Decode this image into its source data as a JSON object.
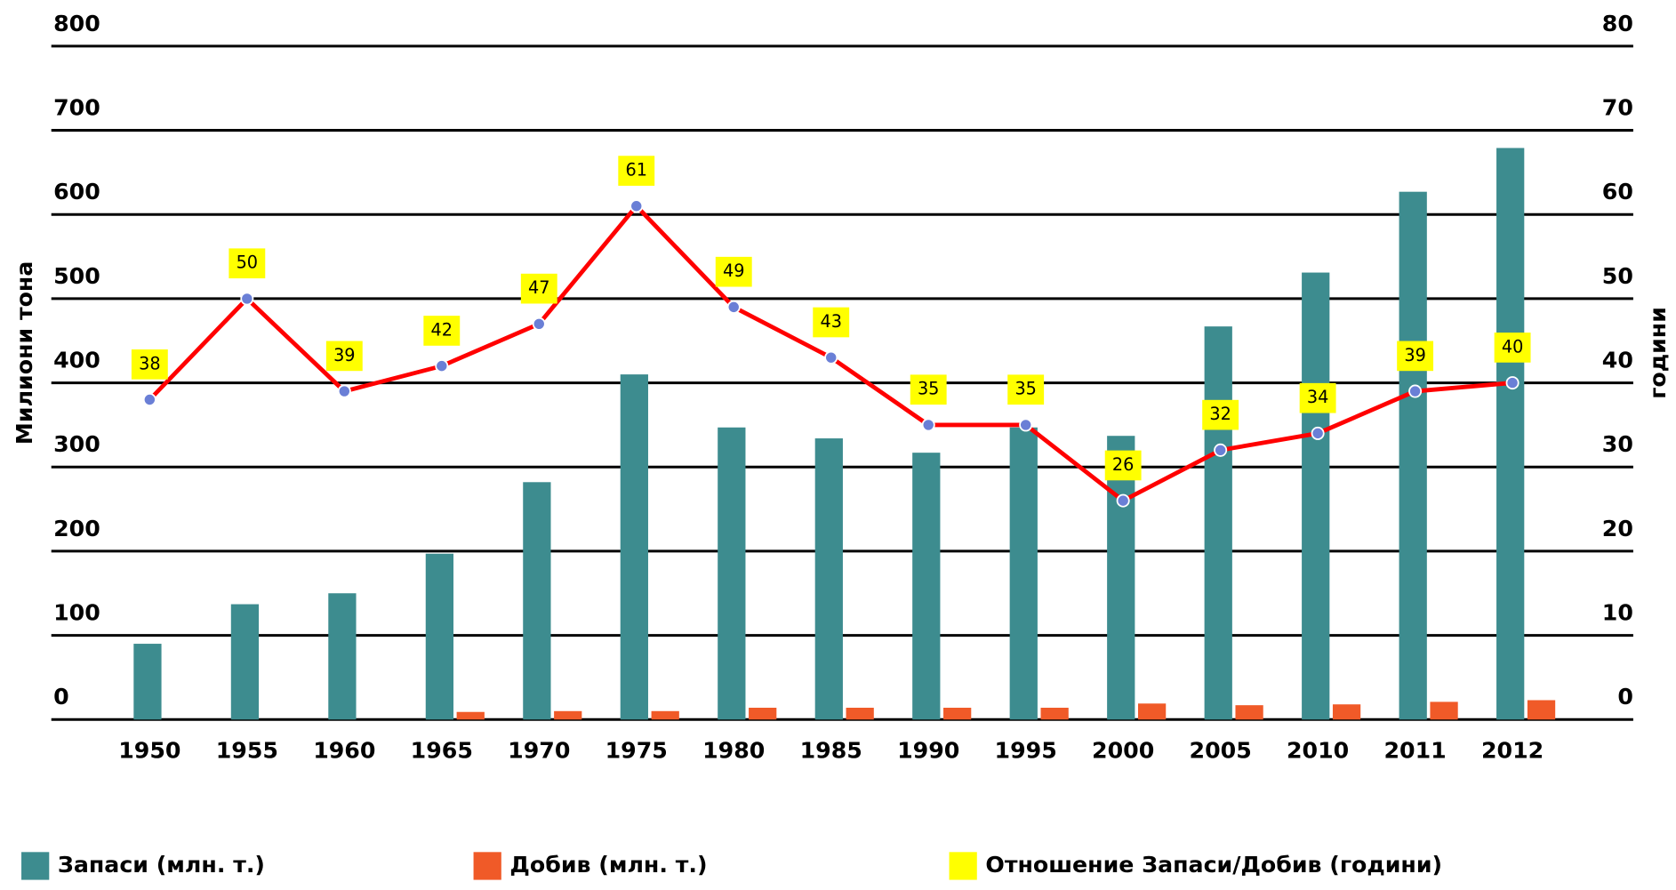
{
  "chart_data": {
    "type": "bar_line",
    "categories": [
      "1950",
      "1955",
      "1960",
      "1965",
      "1970",
      "1975",
      "1980",
      "1985",
      "1990",
      "1995",
      "2000",
      "2005",
      "2010",
      "2011",
      "2012"
    ],
    "ylabel": "Милиони тона",
    "y2label": "години",
    "ylim": [
      0,
      800
    ],
    "yticks": [
      0,
      100,
      200,
      300,
      400,
      500,
      600,
      700,
      800
    ],
    "y2lim": [
      0,
      80
    ],
    "y2ticks": [
      0,
      10,
      20,
      30,
      40,
      50,
      60,
      70,
      80
    ],
    "grid": true,
    "legend": "bottom",
    "series": [
      {
        "name": "Запаси (млн. т.)",
        "type": "bar",
        "color": "#3d8c8f",
        "values": [
          90,
          137,
          150,
          197,
          282,
          410,
          347,
          334,
          317,
          347,
          337,
          467,
          531,
          627,
          679
        ]
      },
      {
        "name": "Добив (млн. т.)",
        "type": "bar",
        "color": "#f05a28",
        "values": [
          0,
          0,
          0,
          9,
          10,
          10,
          14,
          14,
          14,
          14,
          19,
          17,
          18,
          21,
          23
        ]
      },
      {
        "name": "Отношение Запаси/Добив (години)",
        "type": "line",
        "axis": "y2",
        "color": "#ff0000",
        "label_color": "#ffff00",
        "values": [
          38,
          50,
          39,
          42,
          47,
          61,
          49,
          43,
          35,
          35,
          26,
          32,
          34,
          39,
          40
        ]
      }
    ]
  }
}
